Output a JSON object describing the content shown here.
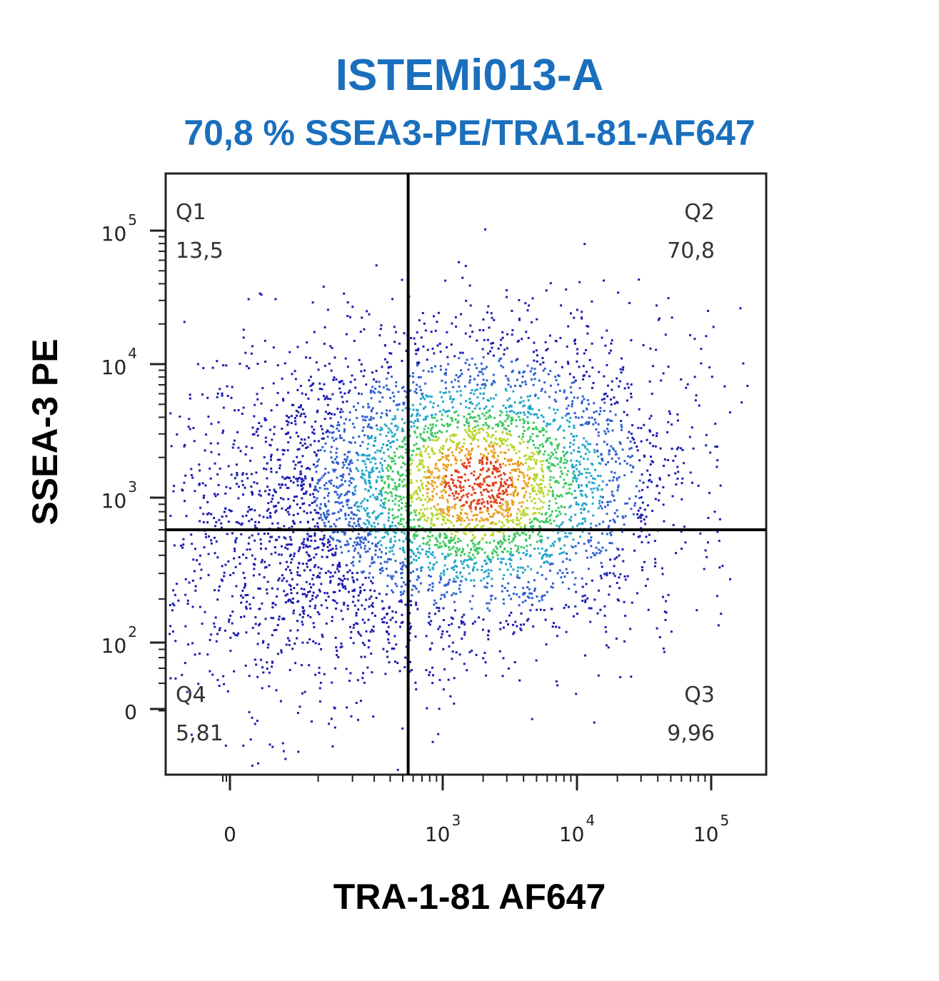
{
  "chart_data": {
    "type": "scatter",
    "title": "ISTEMi013-A",
    "subtitle": "70,8 % SSEA3-PE/TRA1-81-AF647",
    "xlabel": "TRA-1-81 AF647",
    "ylabel": "SSEA-3 PE",
    "x_scale": "biexponential",
    "y_scale": "biexponential",
    "x_ticks": [
      {
        "value": 0,
        "base": "0",
        "exp": ""
      },
      {
        "value": 1000,
        "base": "10",
        "exp": "3"
      },
      {
        "value": 10000,
        "base": "10",
        "exp": "4"
      },
      {
        "value": 100000,
        "base": "10",
        "exp": "5"
      }
    ],
    "y_ticks": [
      {
        "value": 0,
        "base": "0",
        "exp": ""
      },
      {
        "value": 100,
        "base": "10",
        "exp": "2"
      },
      {
        "value": 1000,
        "base": "10",
        "exp": "3"
      },
      {
        "value": 10000,
        "base": "10",
        "exp": "4"
      },
      {
        "value": 100000,
        "base": "10",
        "exp": "5"
      }
    ],
    "gate": {
      "x": 550,
      "y": 600
    },
    "quadrants": [
      {
        "name": "Q1",
        "value": "13,5",
        "position": "top-left"
      },
      {
        "name": "Q2",
        "value": "70,8",
        "position": "top-right"
      },
      {
        "name": "Q3",
        "value": "9,96",
        "position": "bottom-right"
      },
      {
        "name": "Q4",
        "value": "5,81",
        "position": "bottom-left"
      }
    ],
    "population": {
      "center_x": 1800,
      "center_y": 1300,
      "display": "density pseudocolor"
    },
    "density_colors": [
      "#1b1bb0",
      "#2f5fd0",
      "#22a6c8",
      "#3cc860",
      "#b7d62a",
      "#e8a020",
      "#e0401a"
    ],
    "grid": false
  }
}
